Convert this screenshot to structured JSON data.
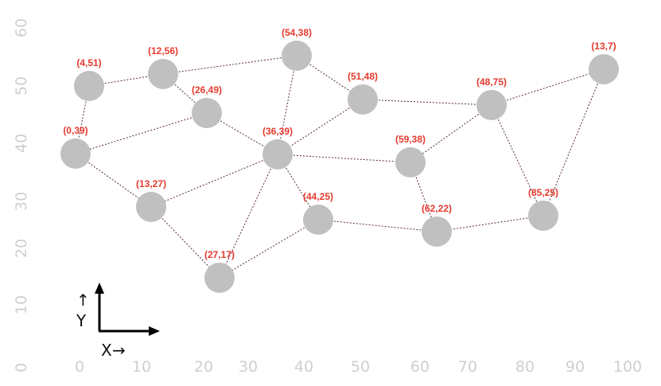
{
  "diagram": {
    "x_ticks": [
      "0",
      "10",
      "20",
      "30",
      "40",
      "50",
      "60",
      "70",
      "80",
      "90",
      "100"
    ],
    "y_ticks": [
      "0",
      "10",
      "20",
      "30",
      "40",
      "50",
      "60"
    ],
    "indicator": {
      "x_label": "X",
      "y_label": "Y",
      "x_arrow": "→",
      "y_arrow": "↑"
    },
    "nodes": [
      {
        "id": "n1",
        "label": "(4,51)"
      },
      {
        "id": "n2",
        "label": "(12,56)"
      },
      {
        "id": "n3",
        "label": "(54,38)"
      },
      {
        "id": "n4",
        "label": "(26,49)"
      },
      {
        "id": "n5",
        "label": "(0,39)"
      },
      {
        "id": "n6",
        "label": "(51,48)"
      },
      {
        "id": "n7",
        "label": "(36,39)"
      },
      {
        "id": "n8",
        "label": "(48,75)"
      },
      {
        "id": "n9",
        "label": "(13,7)"
      },
      {
        "id": "n10",
        "label": "(59,38)"
      },
      {
        "id": "n11",
        "label": "(13,27)"
      },
      {
        "id": "n12",
        "label": "(44,25)"
      },
      {
        "id": "n13",
        "label": "(85,25)"
      },
      {
        "id": "n14",
        "label": "(62,22)"
      },
      {
        "id": "n15",
        "label": "(27,17)"
      }
    ],
    "edges": [
      [
        "n1",
        "n2"
      ],
      [
        "n1",
        "n5"
      ],
      [
        "n2",
        "n3"
      ],
      [
        "n2",
        "n4"
      ],
      [
        "n3",
        "n6"
      ],
      [
        "n3",
        "n7"
      ],
      [
        "n4",
        "n5"
      ],
      [
        "n4",
        "n7"
      ],
      [
        "n5",
        "n11"
      ],
      [
        "n6",
        "n7"
      ],
      [
        "n6",
        "n8"
      ],
      [
        "n7",
        "n10"
      ],
      [
        "n7",
        "n11"
      ],
      [
        "n7",
        "n12"
      ],
      [
        "n7",
        "n15"
      ],
      [
        "n8",
        "n9"
      ],
      [
        "n8",
        "n10"
      ],
      [
        "n8",
        "n13"
      ],
      [
        "n9",
        "n13"
      ],
      [
        "n10",
        "n14"
      ],
      [
        "n11",
        "n15"
      ],
      [
        "n12",
        "n14"
      ],
      [
        "n12",
        "n15"
      ],
      [
        "n13",
        "n14"
      ]
    ]
  }
}
